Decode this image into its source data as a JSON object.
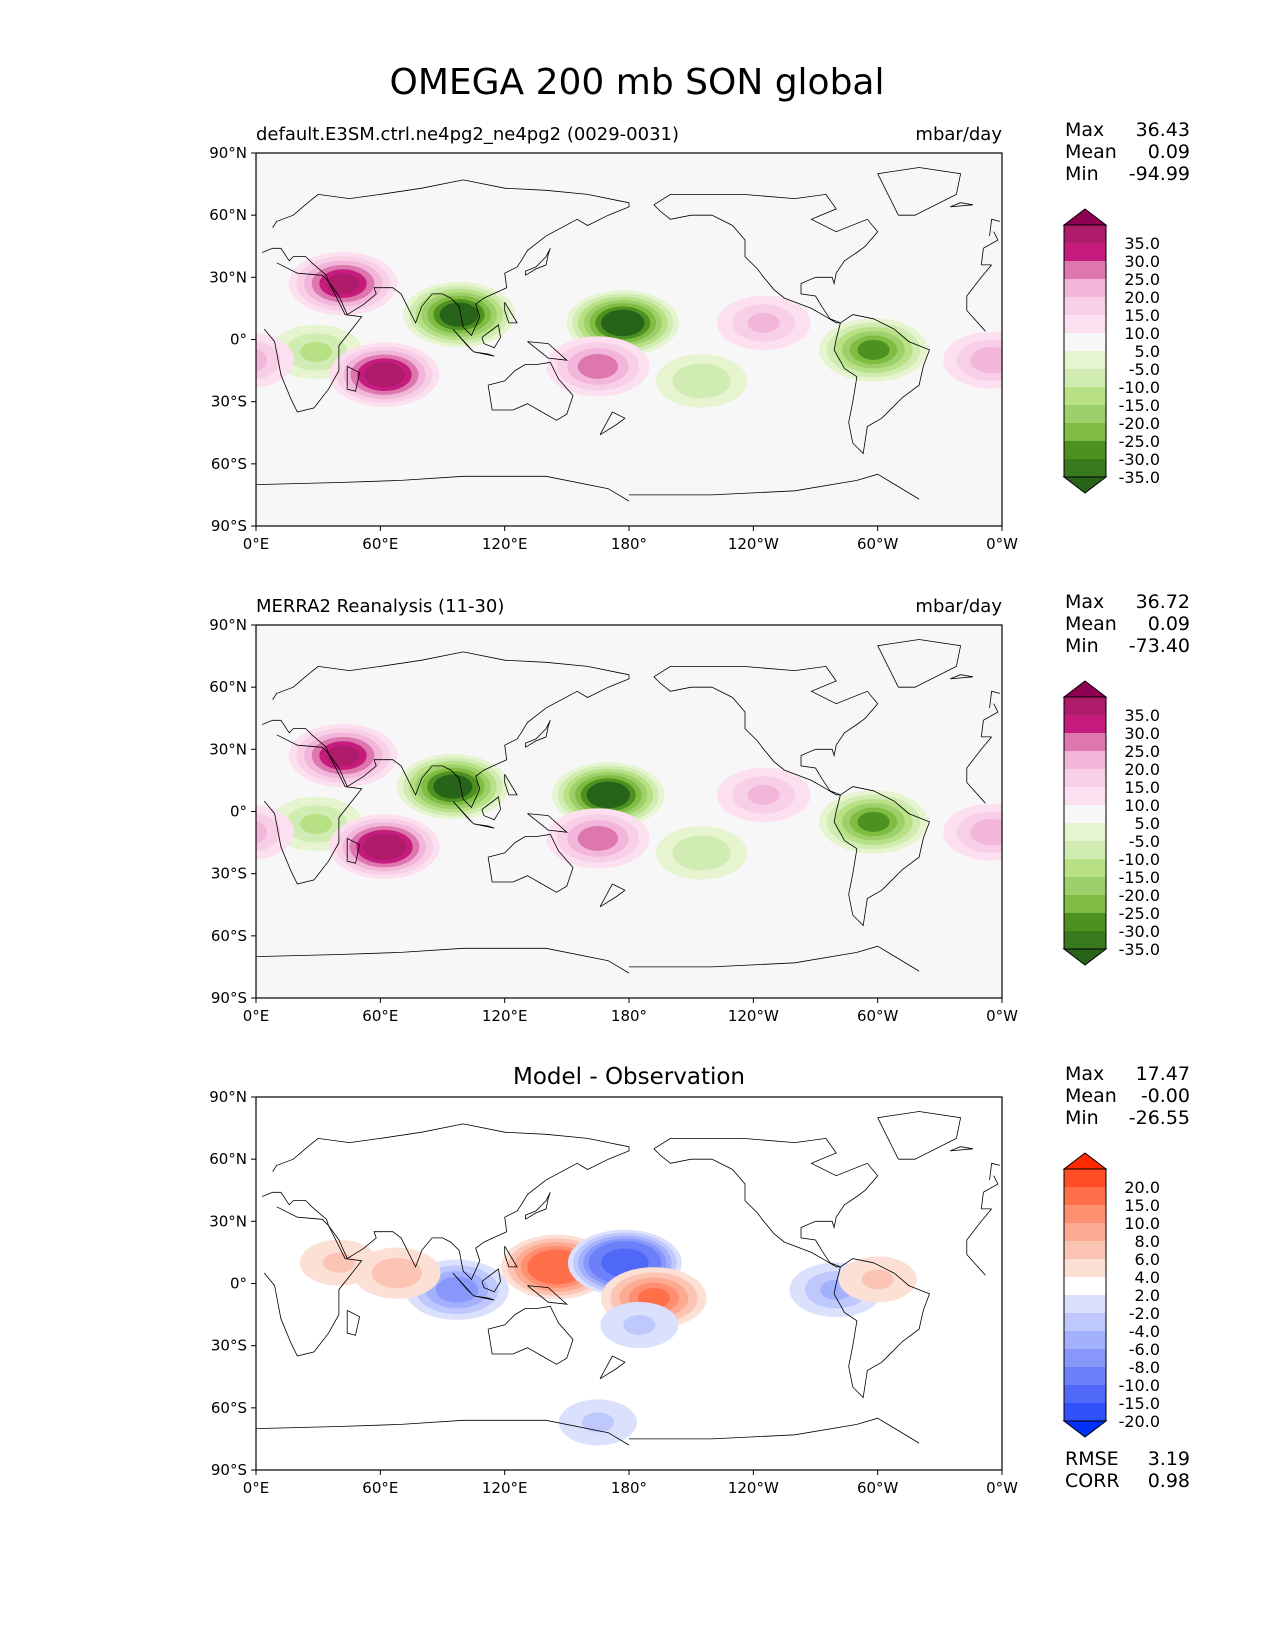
{
  "figure": {
    "title": "OMEGA 200 mb SON global"
  },
  "axes": {
    "lat_ticks": [
      "90°N",
      "60°N",
      "30°N",
      "0°",
      "30°S",
      "60°S",
      "90°S"
    ],
    "lon_ticks": [
      "0°E",
      "60°E",
      "120°E",
      "180°",
      "120°W",
      "60°W",
      "0°W"
    ]
  },
  "panels": [
    {
      "id": "model",
      "left_title": "default.E3SM.ctrl.ne4pg2_ne4pg2 (0029-0031)",
      "center_title": "",
      "right_title": "mbar/day",
      "stats": [
        {
          "label": "Max",
          "value": "36.43"
        },
        {
          "label": "Mean",
          "value": "0.09"
        },
        {
          "label": "Min",
          "value": "-94.99"
        }
      ],
      "colorbar": {
        "labels": [
          "35.0",
          "30.0",
          "25.0",
          "20.0",
          "15.0",
          "10.0",
          "5.0",
          "-5.0",
          "-10.0",
          "-15.0",
          "-20.0",
          "-25.0",
          "-30.0",
          "-35.0"
        ],
        "colors": [
          "#8e0152",
          "#ae1b6b",
          "#c51b7d",
          "#de77ae",
          "#f1b6da",
          "#f7cfe6",
          "#fde0ef",
          "#f7f7f7",
          "#e6f5d0",
          "#d0ecb3",
          "#b8e186",
          "#9dcf6a",
          "#7fbc41",
          "#4d9221",
          "#3a7a1e",
          "#276419"
        ]
      },
      "features": [
        {
          "name": "ascent-west-pacific",
          "lon": 177,
          "lat": 8,
          "value": -40
        },
        {
          "name": "ascent-maritime",
          "lon": 98,
          "lat": 12,
          "value": -38
        },
        {
          "name": "ascent-amazon",
          "lon": -62,
          "lat": -5,
          "value": -30
        },
        {
          "name": "ascent-congo",
          "lon": 29,
          "lat": -6,
          "value": -15
        },
        {
          "name": "descent-arabia",
          "lon": 42,
          "lat": 27,
          "value": 30
        },
        {
          "name": "descent-s-indian",
          "lon": 62,
          "lat": -17,
          "value": 33
        },
        {
          "name": "descent-sw-pacific",
          "lon": 165,
          "lat": -13,
          "value": 22
        },
        {
          "name": "descent-e-pacific",
          "lon": -115,
          "lat": 8,
          "value": 15
        },
        {
          "name": "descent-s-atlantic",
          "lon": -5,
          "lat": -10,
          "value": 17
        },
        {
          "name": "ascent-se-pacific",
          "lon": -145,
          "lat": -20,
          "value": -14
        }
      ]
    },
    {
      "id": "obs",
      "left_title": "MERRA2 Reanalysis (11-30)",
      "center_title": "",
      "right_title": "mbar/day",
      "stats": [
        {
          "label": "Max",
          "value": "36.72"
        },
        {
          "label": "Mean",
          "value": "0.09"
        },
        {
          "label": "Min",
          "value": "-73.40"
        }
      ],
      "colorbar": {
        "labels": [
          "35.0",
          "30.0",
          "25.0",
          "20.0",
          "15.0",
          "10.0",
          "5.0",
          "-5.0",
          "-10.0",
          "-15.0",
          "-20.0",
          "-25.0",
          "-30.0",
          "-35.0"
        ],
        "colors": [
          "#8e0152",
          "#ae1b6b",
          "#c51b7d",
          "#de77ae",
          "#f1b6da",
          "#f7cfe6",
          "#fde0ef",
          "#f7f7f7",
          "#e6f5d0",
          "#d0ecb3",
          "#b8e186",
          "#9dcf6a",
          "#7fbc41",
          "#4d9221",
          "#3a7a1e",
          "#276419"
        ]
      },
      "features": [
        {
          "name": "ascent-west-pacific",
          "lon": 170,
          "lat": 8,
          "value": -40
        },
        {
          "name": "ascent-maritime",
          "lon": 95,
          "lat": 12,
          "value": -38
        },
        {
          "name": "ascent-amazon",
          "lon": -62,
          "lat": -5,
          "value": -30
        },
        {
          "name": "ascent-congo",
          "lon": 29,
          "lat": -6,
          "value": -15
        },
        {
          "name": "descent-arabia",
          "lon": 42,
          "lat": 27,
          "value": 30
        },
        {
          "name": "descent-s-indian",
          "lon": 62,
          "lat": -17,
          "value": 34
        },
        {
          "name": "descent-sw-pacific",
          "lon": 165,
          "lat": -13,
          "value": 22
        },
        {
          "name": "descent-e-pacific",
          "lon": -115,
          "lat": 8,
          "value": 15
        },
        {
          "name": "descent-s-atlantic",
          "lon": -5,
          "lat": -10,
          "value": 17
        },
        {
          "name": "ascent-se-pacific",
          "lon": -145,
          "lat": -20,
          "value": -14
        }
      ]
    },
    {
      "id": "diff",
      "left_title": "",
      "center_title": "Model - Observation",
      "right_title": "",
      "stats": [
        {
          "label": "Max",
          "value": "17.47"
        },
        {
          "label": "Mean",
          "value": "-0.00"
        },
        {
          "label": "Min",
          "value": "-26.55"
        }
      ],
      "extra_stats": [
        {
          "label": "RMSE",
          "value": "3.19"
        },
        {
          "label": "CORR",
          "value": "0.98"
        }
      ],
      "colorbar": {
        "labels": [
          "20.0",
          "15.0",
          "10.0",
          "8.0",
          "6.0",
          "4.0",
          "2.0",
          "-2.0",
          "-4.0",
          "-6.0",
          "-8.0",
          "-10.0",
          "-15.0",
          "-20.0"
        ],
        "colors": [
          "#ff2a00",
          "#ff4d24",
          "#ff6f4a",
          "#fe8f71",
          "#fdaa92",
          "#fcc4b3",
          "#fde0d5",
          "#ffffff",
          "#dbe0fd",
          "#bfc8fc",
          "#a3b0fb",
          "#8798fa",
          "#6b80f9",
          "#4f68f8",
          "#3050f8",
          "#0030f8"
        ]
      },
      "features": [
        {
          "name": "diff-pos-maritime",
          "lon": 145,
          "lat": 8,
          "value": 14
        },
        {
          "name": "diff-neg-dateline",
          "lon": 178,
          "lat": 10,
          "value": -18
        },
        {
          "name": "diff-pos-south-pacific",
          "lon": 192,
          "lat": -7,
          "value": 10
        },
        {
          "name": "diff-neg-indian",
          "lon": 97,
          "lat": -3,
          "value": -9
        },
        {
          "name": "diff-pos-africa",
          "lon": 40,
          "lat": 10,
          "value": 4
        },
        {
          "name": "diff-pos-arabian-sea",
          "lon": 68,
          "lat": 5,
          "value": 5
        },
        {
          "name": "diff-neg-andes",
          "lon": -80,
          "lat": -3,
          "value": -6
        },
        {
          "name": "diff-pos-brazil",
          "lon": -60,
          "lat": 2,
          "value": 4
        },
        {
          "name": "diff-neg-se-pacific",
          "lon": -175,
          "lat": -20,
          "value": -4
        },
        {
          "name": "diff-neg-southern-ocean",
          "lon": 165,
          "lat": -67,
          "value": -4
        }
      ]
    }
  ]
}
